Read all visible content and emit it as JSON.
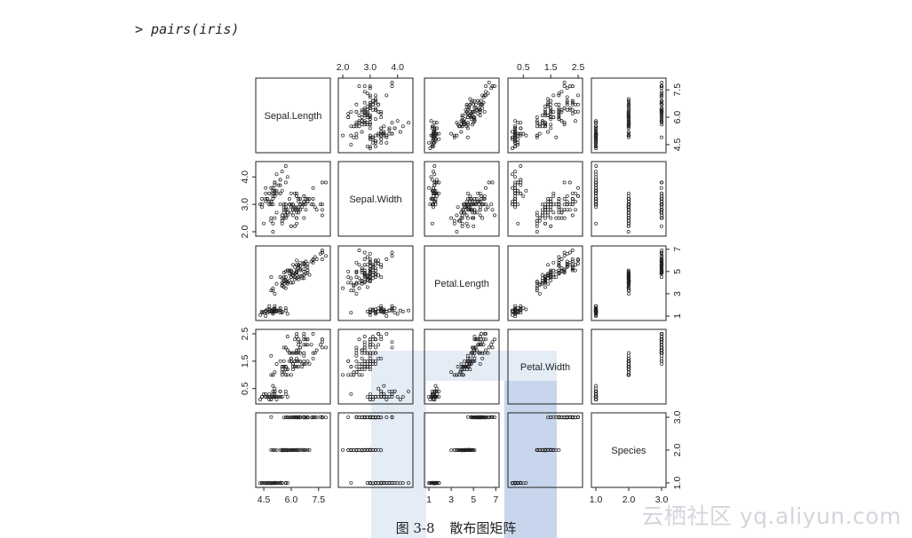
{
  "command": "> pairs(iris)",
  "caption": {
    "figure_no": "图 3-8",
    "title": "散布图矩阵"
  },
  "watermark": "云栖社区 yq.aliyun.com",
  "colors": {
    "points": "#222222",
    "frame": "#222222",
    "banner_light": "#e4ecf6",
    "banner_dark": "#c7d6ec"
  },
  "chart_data": {
    "type": "scatter",
    "variables": [
      "Sepal.Length",
      "Sepal.Width",
      "Petal.Length",
      "Petal.Width",
      "Species"
    ],
    "ranges": [
      [
        4.3,
        7.9
      ],
      [
        2.0,
        4.4
      ],
      [
        1.0,
        6.9
      ],
      [
        0.1,
        2.5
      ],
      [
        1,
        3
      ]
    ],
    "ticks": [
      {
        "values": [
          4.5,
          6.0,
          7.5
        ],
        "labels": [
          "4.5",
          "6.0",
          "7.5"
        ]
      },
      {
        "values": [
          2.0,
          3.0,
          4.0
        ],
        "labels": [
          "2.0",
          "3.0",
          "4.0"
        ]
      },
      {
        "values": [
          1,
          3,
          5,
          7
        ],
        "labels": [
          "1",
          "3",
          "5",
          "7"
        ]
      },
      {
        "values": [
          0.5,
          1.5,
          2.5
        ],
        "labels": [
          "0.5",
          "1.5",
          "2.5"
        ]
      },
      {
        "values": [
          1.0,
          2.0,
          3.0
        ],
        "labels": [
          "1.0",
          "2.0",
          "3.0"
        ]
      }
    ],
    "axis_sides": {
      "top": [
        1,
        3
      ],
      "right": [
        0,
        2,
        4
      ],
      "left": [
        1,
        3
      ],
      "bottom": [
        0,
        2,
        4
      ]
    },
    "species_levels": [
      1,
      2,
      3
    ],
    "observations": {
      "columns": [
        "Sepal.Length",
        "Sepal.Width",
        "Petal.Length",
        "Petal.Width",
        "Species"
      ],
      "rows": [
        [
          5.1,
          3.5,
          1.4,
          0.2,
          1
        ],
        [
          4.9,
          3.0,
          1.4,
          0.2,
          1
        ],
        [
          4.7,
          3.2,
          1.3,
          0.2,
          1
        ],
        [
          4.6,
          3.1,
          1.5,
          0.2,
          1
        ],
        [
          5.0,
          3.6,
          1.4,
          0.2,
          1
        ],
        [
          5.4,
          3.9,
          1.7,
          0.4,
          1
        ],
        [
          4.6,
          3.4,
          1.4,
          0.3,
          1
        ],
        [
          5.0,
          3.4,
          1.5,
          0.2,
          1
        ],
        [
          4.4,
          2.9,
          1.4,
          0.2,
          1
        ],
        [
          4.9,
          3.1,
          1.5,
          0.1,
          1
        ],
        [
          5.4,
          3.7,
          1.5,
          0.2,
          1
        ],
        [
          4.8,
          3.4,
          1.6,
          0.2,
          1
        ],
        [
          4.8,
          3.0,
          1.4,
          0.1,
          1
        ],
        [
          4.3,
          3.0,
          1.1,
          0.1,
          1
        ],
        [
          5.8,
          4.0,
          1.2,
          0.2,
          1
        ],
        [
          5.7,
          4.4,
          1.5,
          0.4,
          1
        ],
        [
          5.4,
          3.9,
          1.3,
          0.4,
          1
        ],
        [
          5.1,
          3.5,
          1.4,
          0.3,
          1
        ],
        [
          5.7,
          3.8,
          1.7,
          0.3,
          1
        ],
        [
          5.1,
          3.8,
          1.5,
          0.3,
          1
        ],
        [
          5.4,
          3.4,
          1.7,
          0.2,
          1
        ],
        [
          5.1,
          3.7,
          1.5,
          0.4,
          1
        ],
        [
          4.6,
          3.6,
          1.0,
          0.2,
          1
        ],
        [
          5.1,
          3.3,
          1.7,
          0.5,
          1
        ],
        [
          4.8,
          3.4,
          1.9,
          0.2,
          1
        ],
        [
          5.0,
          3.0,
          1.6,
          0.2,
          1
        ],
        [
          5.0,
          3.4,
          1.6,
          0.4,
          1
        ],
        [
          5.2,
          3.5,
          1.5,
          0.2,
          1
        ],
        [
          5.2,
          3.4,
          1.4,
          0.2,
          1
        ],
        [
          4.7,
          3.2,
          1.6,
          0.2,
          1
        ],
        [
          4.8,
          3.1,
          1.6,
          0.2,
          1
        ],
        [
          5.4,
          3.4,
          1.5,
          0.4,
          1
        ],
        [
          5.2,
          4.1,
          1.5,
          0.1,
          1
        ],
        [
          5.5,
          4.2,
          1.4,
          0.2,
          1
        ],
        [
          4.9,
          3.1,
          1.5,
          0.2,
          1
        ],
        [
          5.0,
          3.2,
          1.2,
          0.2,
          1
        ],
        [
          5.5,
          3.5,
          1.3,
          0.2,
          1
        ],
        [
          4.9,
          3.6,
          1.4,
          0.1,
          1
        ],
        [
          4.4,
          3.0,
          1.3,
          0.2,
          1
        ],
        [
          5.1,
          3.4,
          1.5,
          0.2,
          1
        ],
        [
          5.0,
          3.5,
          1.3,
          0.3,
          1
        ],
        [
          4.5,
          2.3,
          1.3,
          0.3,
          1
        ],
        [
          4.4,
          3.2,
          1.3,
          0.2,
          1
        ],
        [
          5.0,
          3.5,
          1.6,
          0.6,
          1
        ],
        [
          5.1,
          3.8,
          1.9,
          0.4,
          1
        ],
        [
          4.8,
          3.0,
          1.4,
          0.3,
          1
        ],
        [
          5.1,
          3.8,
          1.6,
          0.2,
          1
        ],
        [
          4.6,
          3.2,
          1.4,
          0.2,
          1
        ],
        [
          5.3,
          3.7,
          1.5,
          0.2,
          1
        ],
        [
          5.0,
          3.3,
          1.4,
          0.2,
          1
        ],
        [
          7.0,
          3.2,
          4.7,
          1.4,
          2
        ],
        [
          6.4,
          3.2,
          4.5,
          1.5,
          2
        ],
        [
          6.9,
          3.1,
          4.9,
          1.5,
          2
        ],
        [
          5.5,
          2.3,
          4.0,
          1.3,
          2
        ],
        [
          6.5,
          2.8,
          4.6,
          1.5,
          2
        ],
        [
          5.7,
          2.8,
          4.5,
          1.3,
          2
        ],
        [
          6.3,
          3.3,
          4.7,
          1.6,
          2
        ],
        [
          4.9,
          2.4,
          3.3,
          1.0,
          2
        ],
        [
          6.6,
          2.9,
          4.6,
          1.3,
          2
        ],
        [
          5.2,
          2.7,
          3.9,
          1.4,
          2
        ],
        [
          5.0,
          2.0,
          3.5,
          1.0,
          2
        ],
        [
          5.9,
          3.0,
          4.2,
          1.5,
          2
        ],
        [
          6.0,
          2.2,
          4.0,
          1.0,
          2
        ],
        [
          6.1,
          2.9,
          4.7,
          1.4,
          2
        ],
        [
          5.6,
          2.9,
          3.6,
          1.3,
          2
        ],
        [
          6.7,
          3.1,
          4.4,
          1.4,
          2
        ],
        [
          5.6,
          3.0,
          4.5,
          1.5,
          2
        ],
        [
          5.8,
          2.7,
          4.1,
          1.0,
          2
        ],
        [
          6.2,
          2.2,
          4.5,
          1.5,
          2
        ],
        [
          5.6,
          2.5,
          3.9,
          1.1,
          2
        ],
        [
          5.9,
          3.2,
          4.8,
          1.8,
          2
        ],
        [
          6.1,
          2.8,
          4.0,
          1.3,
          2
        ],
        [
          6.3,
          2.5,
          4.9,
          1.5,
          2
        ],
        [
          6.1,
          2.8,
          4.7,
          1.2,
          2
        ],
        [
          6.4,
          2.9,
          4.3,
          1.3,
          2
        ],
        [
          6.6,
          3.0,
          4.4,
          1.4,
          2
        ],
        [
          6.8,
          2.8,
          4.8,
          1.4,
          2
        ],
        [
          6.7,
          3.0,
          5.0,
          1.7,
          2
        ],
        [
          6.0,
          2.9,
          4.5,
          1.5,
          2
        ],
        [
          5.7,
          2.6,
          3.5,
          1.0,
          2
        ],
        [
          5.5,
          2.4,
          3.8,
          1.1,
          2
        ],
        [
          5.5,
          2.4,
          3.7,
          1.0,
          2
        ],
        [
          5.8,
          2.7,
          3.9,
          1.2,
          2
        ],
        [
          6.0,
          2.7,
          5.1,
          1.6,
          2
        ],
        [
          5.4,
          3.0,
          4.5,
          1.5,
          2
        ],
        [
          6.0,
          3.4,
          4.5,
          1.6,
          2
        ],
        [
          6.7,
          3.1,
          4.7,
          1.5,
          2
        ],
        [
          6.3,
          2.3,
          4.4,
          1.3,
          2
        ],
        [
          5.6,
          3.0,
          4.1,
          1.3,
          2
        ],
        [
          5.5,
          2.5,
          4.0,
          1.3,
          2
        ],
        [
          5.5,
          2.6,
          4.4,
          1.2,
          2
        ],
        [
          6.1,
          3.0,
          4.6,
          1.4,
          2
        ],
        [
          5.8,
          2.6,
          4.0,
          1.2,
          2
        ],
        [
          5.0,
          2.3,
          3.3,
          1.0,
          2
        ],
        [
          5.6,
          2.7,
          4.2,
          1.3,
          2
        ],
        [
          5.7,
          3.0,
          4.2,
          1.2,
          2
        ],
        [
          5.7,
          2.9,
          4.2,
          1.3,
          2
        ],
        [
          6.2,
          2.9,
          4.3,
          1.3,
          2
        ],
        [
          5.1,
          2.5,
          3.0,
          1.1,
          2
        ],
        [
          5.7,
          2.8,
          4.1,
          1.3,
          2
        ],
        [
          6.3,
          3.3,
          6.0,
          2.5,
          3
        ],
        [
          5.8,
          2.7,
          5.1,
          1.9,
          3
        ],
        [
          7.1,
          3.0,
          5.9,
          2.1,
          3
        ],
        [
          6.3,
          2.9,
          5.6,
          1.8,
          3
        ],
        [
          6.5,
          3.0,
          5.8,
          2.2,
          3
        ],
        [
          7.6,
          3.0,
          6.6,
          2.1,
          3
        ],
        [
          4.9,
          2.5,
          4.5,
          1.7,
          3
        ],
        [
          7.3,
          2.9,
          6.3,
          1.8,
          3
        ],
        [
          6.7,
          2.5,
          5.8,
          1.8,
          3
        ],
        [
          7.2,
          3.6,
          6.1,
          2.5,
          3
        ],
        [
          6.5,
          3.2,
          5.1,
          2.0,
          3
        ],
        [
          6.4,
          2.7,
          5.3,
          1.9,
          3
        ],
        [
          6.8,
          3.0,
          5.5,
          2.1,
          3
        ],
        [
          5.7,
          2.5,
          5.0,
          2.0,
          3
        ],
        [
          5.8,
          2.8,
          5.1,
          2.4,
          3
        ],
        [
          6.4,
          3.2,
          5.3,
          2.3,
          3
        ],
        [
          6.5,
          3.0,
          5.5,
          1.8,
          3
        ],
        [
          7.7,
          3.8,
          6.7,
          2.2,
          3
        ],
        [
          7.7,
          2.6,
          6.9,
          2.3,
          3
        ],
        [
          6.0,
          2.2,
          5.0,
          1.5,
          3
        ],
        [
          6.9,
          3.2,
          5.7,
          2.3,
          3
        ],
        [
          5.6,
          2.8,
          4.9,
          2.0,
          3
        ],
        [
          7.7,
          2.8,
          6.7,
          2.0,
          3
        ],
        [
          6.3,
          2.7,
          4.9,
          1.8,
          3
        ],
        [
          6.7,
          3.3,
          5.7,
          2.1,
          3
        ],
        [
          7.2,
          3.2,
          6.0,
          1.8,
          3
        ],
        [
          6.2,
          2.8,
          4.8,
          1.8,
          3
        ],
        [
          6.1,
          3.0,
          4.9,
          1.8,
          3
        ],
        [
          6.4,
          2.8,
          5.6,
          2.1,
          3
        ],
        [
          7.2,
          3.0,
          5.8,
          1.6,
          3
        ],
        [
          7.4,
          2.8,
          6.1,
          1.9,
          3
        ],
        [
          7.9,
          3.8,
          6.4,
          2.0,
          3
        ],
        [
          6.4,
          2.8,
          5.6,
          2.2,
          3
        ],
        [
          6.3,
          2.8,
          5.1,
          1.5,
          3
        ],
        [
          6.1,
          2.6,
          5.6,
          1.4,
          3
        ],
        [
          7.7,
          3.0,
          6.1,
          2.3,
          3
        ],
        [
          6.3,
          3.4,
          5.6,
          2.4,
          3
        ],
        [
          6.4,
          3.1,
          5.5,
          1.8,
          3
        ],
        [
          6.0,
          3.0,
          4.8,
          1.8,
          3
        ],
        [
          6.9,
          3.1,
          5.4,
          2.1,
          3
        ],
        [
          6.7,
          3.1,
          5.6,
          2.4,
          3
        ],
        [
          6.9,
          3.1,
          5.1,
          2.3,
          3
        ],
        [
          5.8,
          2.7,
          5.1,
          1.9,
          3
        ],
        [
          6.8,
          3.2,
          5.9,
          2.3,
          3
        ],
        [
          6.7,
          3.3,
          5.7,
          2.5,
          3
        ],
        [
          6.7,
          3.0,
          5.2,
          2.3,
          3
        ],
        [
          6.3,
          2.5,
          5.0,
          1.9,
          3
        ],
        [
          6.5,
          3.0,
          5.2,
          2.0,
          3
        ],
        [
          6.2,
          3.4,
          5.4,
          2.3,
          3
        ],
        [
          5.9,
          3.0,
          5.1,
          1.8,
          3
        ]
      ]
    }
  }
}
